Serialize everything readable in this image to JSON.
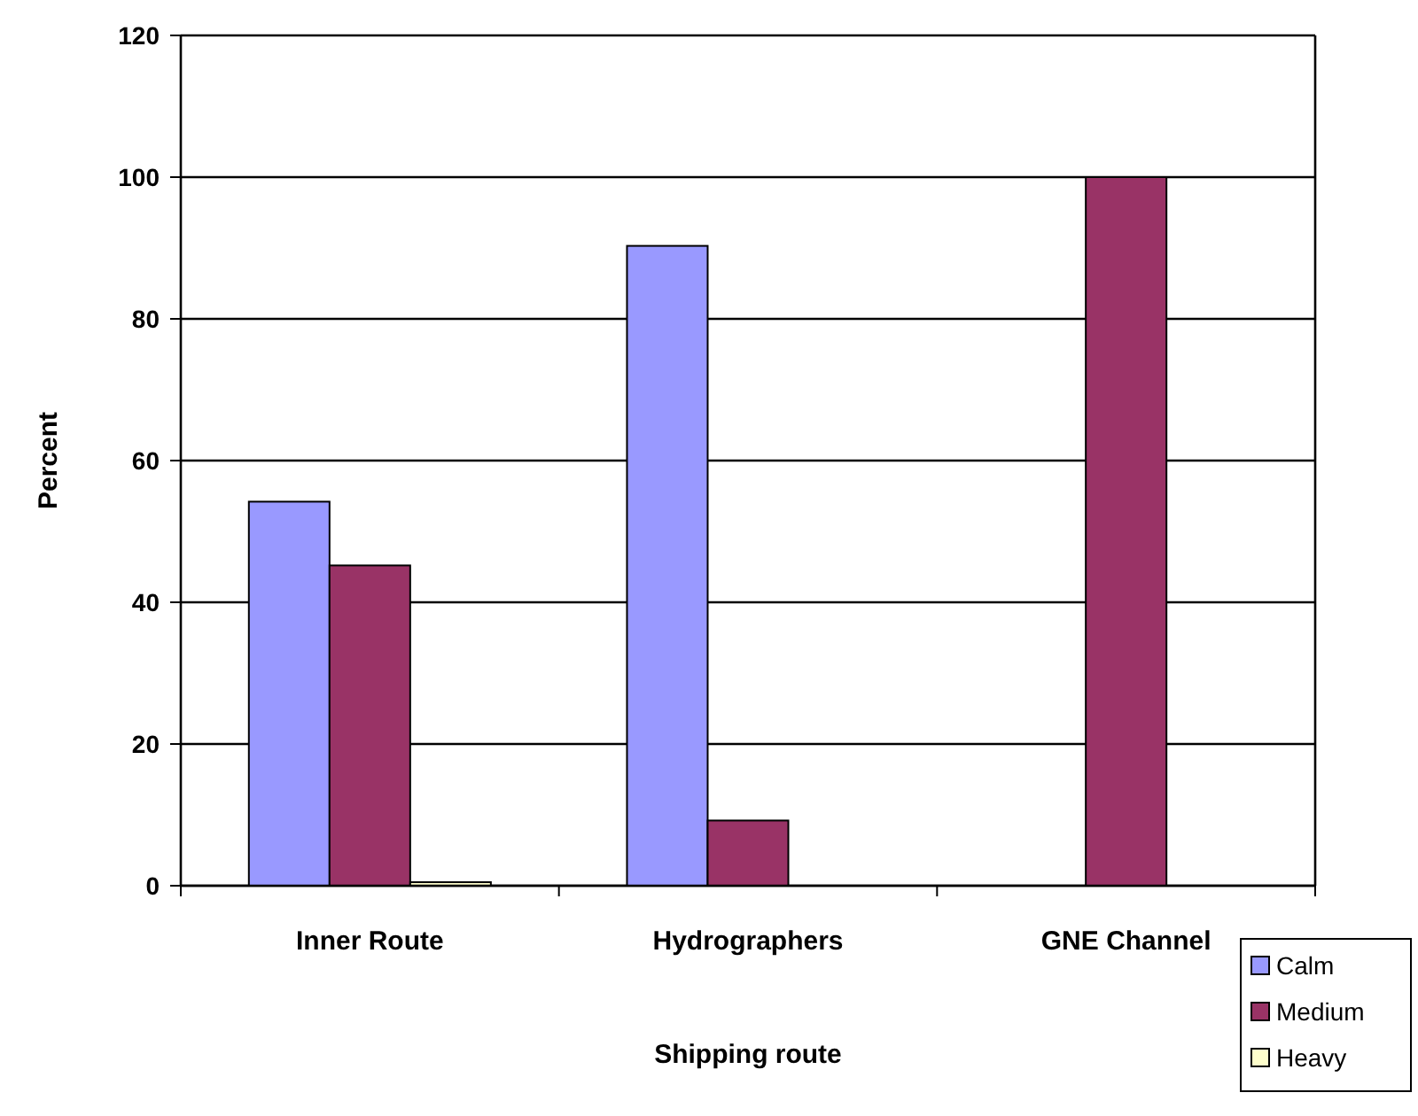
{
  "chart_data": {
    "type": "bar",
    "xlabel": "Shipping route",
    "ylabel": "Percent",
    "categories": [
      "Inner Route",
      "Hydrographers",
      "GNE Channel"
    ],
    "series": [
      {
        "name": "Calm",
        "color": "#9999ff",
        "values": [
          54.2,
          90.3,
          0
        ]
      },
      {
        "name": "Medium",
        "color": "#993366",
        "values": [
          45.2,
          9.2,
          100
        ]
      },
      {
        "name": "Heavy",
        "color": "#ffffcc",
        "values": [
          0.5,
          0,
          0
        ]
      }
    ],
    "ylim": [
      0,
      120
    ],
    "yticks": [
      0,
      20,
      40,
      60,
      80,
      100,
      120
    ],
    "grid": "y",
    "legend": "bottom right"
  }
}
